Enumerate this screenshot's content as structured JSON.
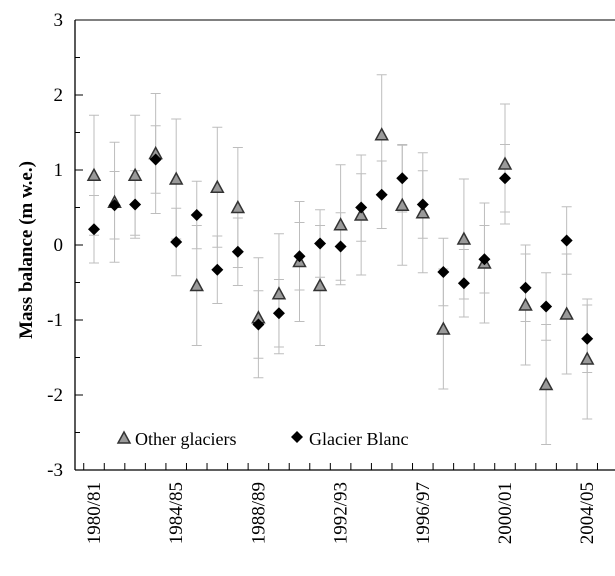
{
  "chart_data": {
    "type": "scatter",
    "title": "",
    "xlabel": "",
    "ylabel": "Mass balance  (m w.e.)",
    "ylim": [
      -3,
      3
    ],
    "yticks": [
      "3",
      "2",
      "1",
      "0",
      "-1",
      "-2",
      "-3"
    ],
    "x_tick_labels": [
      "1980/81",
      "1984/85",
      "1988/89",
      "1992/93",
      "1996/97",
      "2000/01",
      "2004/05"
    ],
    "grid": false,
    "legend_position": "bottom-left",
    "x": [
      "1980/81",
      "1981/82",
      "1982/83",
      "1983/84",
      "1984/85",
      "1985/86",
      "1986/87",
      "1987/88",
      "1988/89",
      "1989/90",
      "1990/91",
      "1991/92",
      "1992/93",
      "1993/94",
      "1994/95",
      "1995/96",
      "1996/97",
      "1997/98",
      "1998/99",
      "1999/00",
      "2000/01",
      "2001/02",
      "2002/03",
      "2003/04",
      "2004/05"
    ],
    "series": [
      {
        "name": "Other glaciers",
        "marker": "open-triangle",
        "color": "#555555",
        "values": [
          0.93,
          0.57,
          0.93,
          1.22,
          0.88,
          -0.54,
          0.77,
          0.5,
          -0.97,
          -0.65,
          -0.22,
          -0.54,
          0.27,
          0.4,
          1.47,
          0.53,
          0.43,
          -1.12,
          0.08,
          -0.24,
          1.08,
          -0.8,
          -1.86,
          -0.92,
          -1.52
        ],
        "error": [
          0.8,
          0.8,
          0.8,
          0.8,
          0.8,
          0.8,
          0.8,
          0.8,
          0.8,
          0.8,
          0.8,
          0.8,
          0.8,
          0.8,
          0.8,
          0.8,
          0.8,
          0.8,
          0.8,
          0.8,
          0.8,
          0.8,
          0.8,
          0.8,
          0.8
        ]
      },
      {
        "name": "Glacier Blanc",
        "marker": "diamond",
        "color": "#000000",
        "values": [
          0.21,
          0.53,
          0.54,
          1.14,
          0.04,
          0.4,
          -0.33,
          -0.09,
          -1.06,
          -0.91,
          -0.15,
          0.02,
          -0.02,
          0.5,
          0.67,
          0.89,
          0.54,
          -0.36,
          -0.51,
          -0.19,
          0.89,
          -0.57,
          -0.82,
          0.06,
          -1.25
        ],
        "error": [
          0.45,
          0.45,
          0.45,
          0.45,
          0.45,
          0.45,
          0.45,
          0.45,
          0.45,
          0.45,
          0.45,
          0.45,
          0.45,
          0.45,
          0.45,
          0.45,
          0.45,
          0.45,
          0.45,
          0.45,
          0.45,
          0.45,
          0.45,
          0.45,
          0.45
        ]
      }
    ],
    "colors": {
      "errorbar": "#bdbdbd",
      "axis": "#000000"
    }
  }
}
